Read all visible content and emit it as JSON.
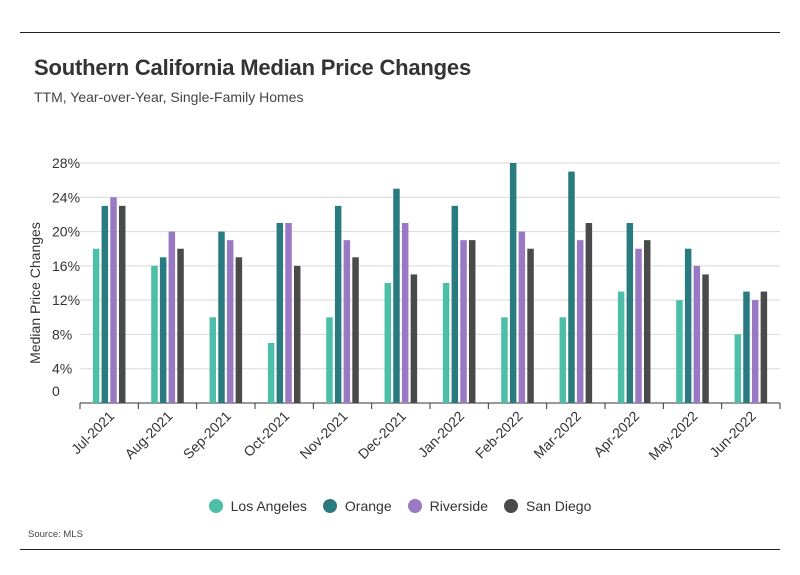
{
  "header": {
    "title": "Southern California Median Price Changes",
    "subtitle": "TTM, Year-over-Year, Single-Family Homes"
  },
  "footer": {
    "source": "Source:  MLS"
  },
  "chart_data": {
    "type": "bar",
    "title": "Southern California Median Price Changes",
    "subtitle": "TTM, Year-over-Year, Single-Family Homes",
    "xlabel": "",
    "ylabel": "Median Price Changes",
    "ylim": [
      0,
      28
    ],
    "yticks": [
      0,
      4,
      8,
      12,
      16,
      20,
      24,
      28
    ],
    "ytick_labels": [
      "0",
      "4%",
      "8%",
      "12%",
      "16%",
      "20%",
      "24%",
      "28%"
    ],
    "grid": true,
    "legend_position": "bottom",
    "categories": [
      "Jul-2021",
      "Aug-2021",
      "Sep-2021",
      "Oct-2021",
      "Nov-2021",
      "Dec-2021",
      "Jan-2022",
      "Feb-2022",
      "Mar-2022",
      "Apr-2022",
      "May-2022",
      "Jun-2022"
    ],
    "series": [
      {
        "name": "Los Angeles",
        "color": "#4dbfa8",
        "values": [
          18,
          16,
          10,
          7,
          10,
          14,
          14,
          10,
          10,
          13,
          12,
          8
        ]
      },
      {
        "name": "Orange",
        "color": "#2a7b80",
        "values": [
          23,
          17,
          20,
          21,
          23,
          25,
          23,
          28,
          27,
          21,
          18,
          13
        ]
      },
      {
        "name": "Riverside",
        "color": "#9a79c4",
        "values": [
          24,
          20,
          19,
          21,
          19,
          21,
          19,
          20,
          19,
          18,
          16,
          12
        ]
      },
      {
        "name": "San Diego",
        "color": "#4a4a4a",
        "values": [
          23,
          18,
          17,
          16,
          17,
          15,
          19,
          18,
          21,
          19,
          15,
          13
        ]
      }
    ]
  }
}
